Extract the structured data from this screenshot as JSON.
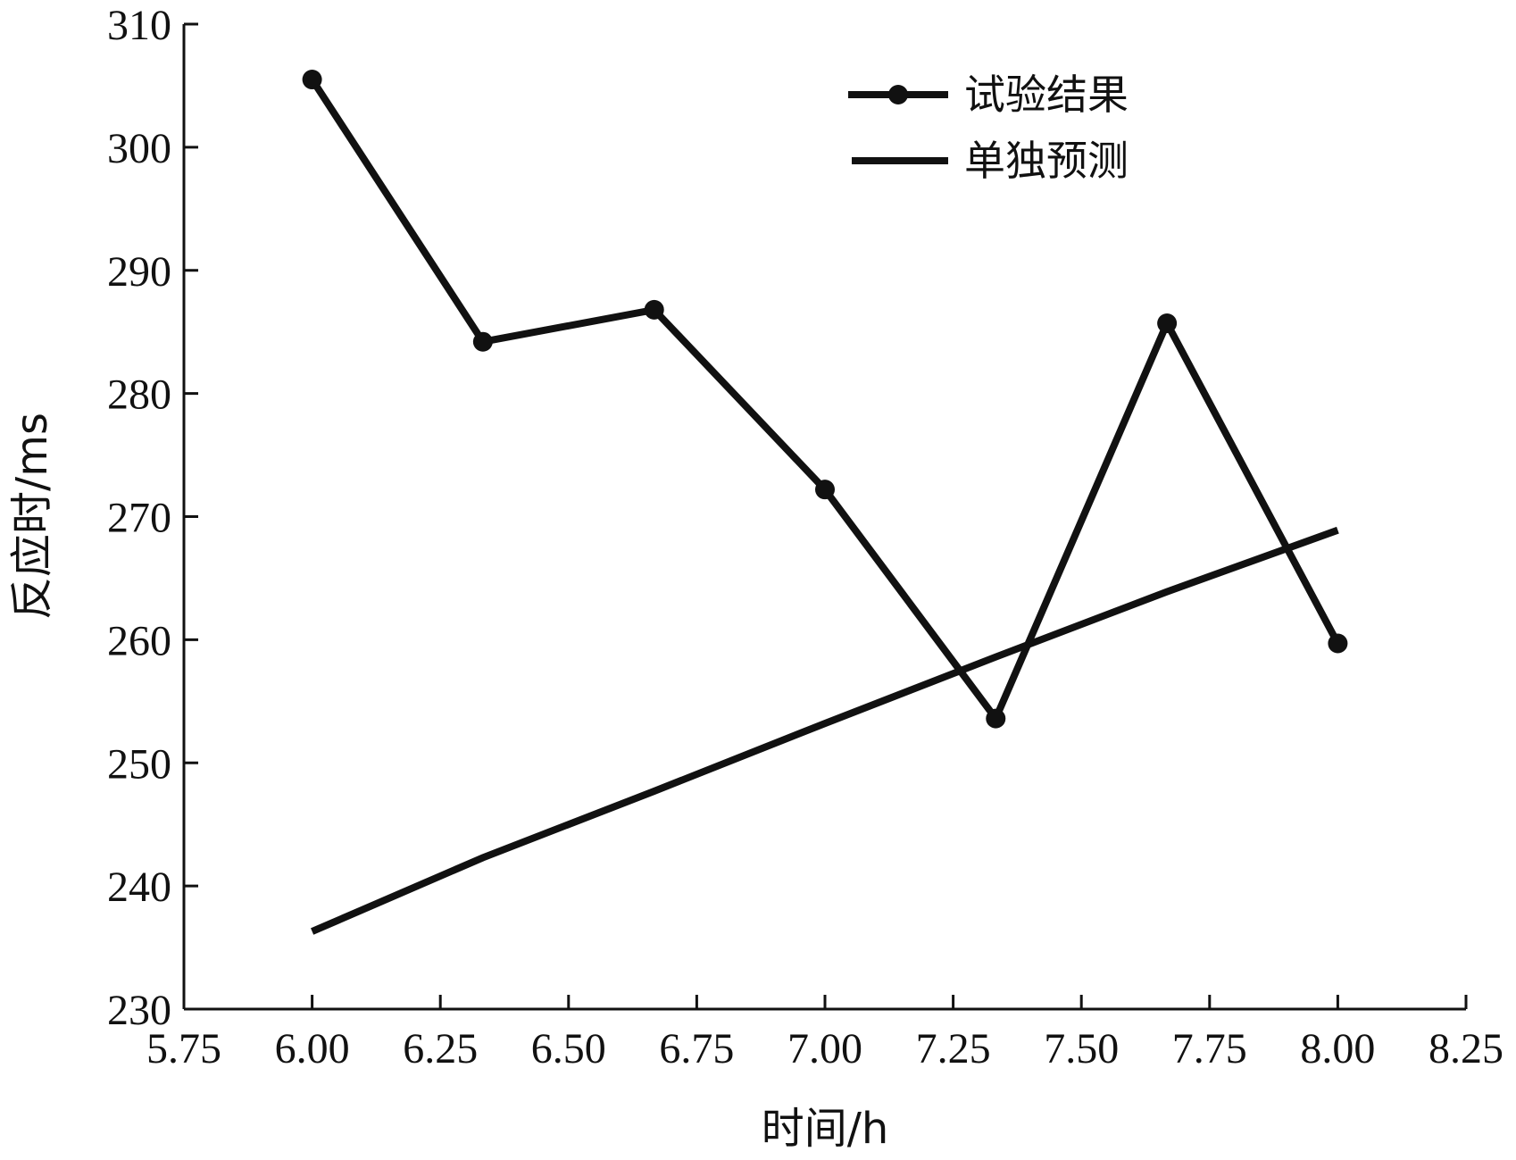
{
  "chart_data": {
    "type": "line",
    "xlabel": "时间/h",
    "ylabel": "反应时/ms",
    "xlim": [
      5.75,
      8.25
    ],
    "ylim": [
      230,
      310
    ],
    "x_ticks": [
      "5.75",
      "6.00",
      "6.25",
      "6.50",
      "6.75",
      "7.00",
      "7.25",
      "7.50",
      "7.75",
      "8.00",
      "8.25"
    ],
    "y_ticks": [
      "230",
      "240",
      "250",
      "260",
      "270",
      "280",
      "290",
      "300",
      "310"
    ],
    "legend_position": "top-right",
    "line_color": "#111111",
    "series": [
      {
        "name": "试验结果",
        "marker": "circle",
        "x": [
          6.0,
          6.333,
          6.667,
          7.0,
          7.333,
          7.667,
          8.0
        ],
        "y": [
          305.5,
          284.2,
          286.8,
          272.2,
          253.6,
          285.7,
          259.7
        ]
      },
      {
        "name": "单独预测",
        "marker": "none",
        "x": [
          6.0,
          6.333,
          6.667,
          7.0,
          7.333,
          7.667,
          8.0
        ],
        "y": [
          236.3,
          242.3,
          247.7,
          253.2,
          258.6,
          263.9,
          268.9
        ]
      }
    ]
  }
}
